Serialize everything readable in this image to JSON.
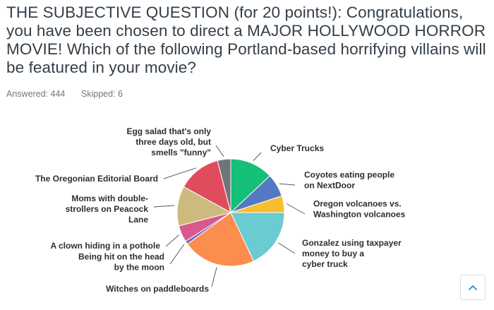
{
  "question": {
    "title": "THE SUBJECTIVE QUESTION (for 20 points!): Congratulations, you have been chosen to direct a MAJOR HOLLYWOOD HORROR MOVIE! Which of the following Portland-based horrifying villains will be featured in your movie?"
  },
  "stats": {
    "answered": "Answered: 444",
    "skipped": "Skipped: 6"
  },
  "icons": {
    "scroll_top": "chevron-up-icon"
  },
  "chart_data": {
    "type": "pie",
    "title": "",
    "start_at": "top, clockwise",
    "slices": [
      {
        "label": [
          "Cyber Trucks"
        ],
        "value": 13,
        "color": "#14bf77"
      },
      {
        "label": [
          "Coyotes eating people",
          "on NextDoor"
        ],
        "value": 7,
        "color": "#5479c0"
      },
      {
        "label": [
          "Oregon volcanoes vs.",
          "Washington volcanoes"
        ],
        "value": 5,
        "color": "#f9be2e"
      },
      {
        "label": [
          "Gonzalez using taxpayer",
          "money to buy a",
          "cyber truck"
        ],
        "value": 18,
        "color": "#6acbd2"
      },
      {
        "label": [
          "Witches on paddleboards"
        ],
        "value": 22,
        "color": "#fb8d4e"
      },
      {
        "label": [
          "Being hit on the head",
          "by the moon"
        ],
        "value": 1,
        "color": "#7a6ab4"
      },
      {
        "label": [
          "A clown hiding in a pothole"
        ],
        "value": 5,
        "color": "#d9588e"
      },
      {
        "label": [
          "Moms with double-",
          "strollers on Peacock",
          "Lane"
        ],
        "value": 12,
        "color": "#cdbb7e"
      },
      {
        "label": [
          "The Oregonian Editorial Board"
        ],
        "value": 13,
        "color": "#e04c5d"
      },
      {
        "label": [
          "Egg salad that's only",
          "three days old, but",
          "smells \"funny\""
        ],
        "value": 4,
        "color": "#6f7479"
      }
    ]
  }
}
